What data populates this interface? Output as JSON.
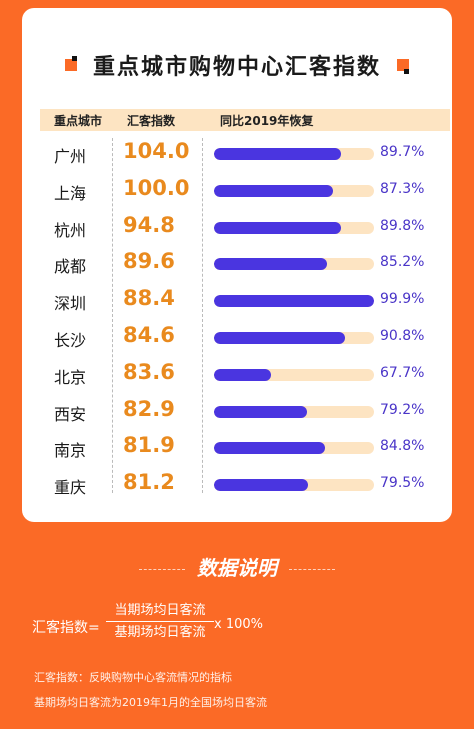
{
  "title": "重点城市购物中心汇客指数",
  "chart_data": {
    "type": "table",
    "columns": [
      "重点城市",
      "汇客指数",
      "同比2019年恢复"
    ],
    "rows": [
      {
        "city": "广州",
        "index": "104.0",
        "recovery": 89.7,
        "recovery_label": "89.7%"
      },
      {
        "city": "上海",
        "index": "100.0",
        "recovery": 87.3,
        "recovery_label": "87.3%"
      },
      {
        "city": "杭州",
        "index": "94.8",
        "recovery": 89.8,
        "recovery_label": "89.8%"
      },
      {
        "city": "成都",
        "index": "89.6",
        "recovery": 85.2,
        "recovery_label": "85.2%"
      },
      {
        "city": "深圳",
        "index": "88.4",
        "recovery": 99.9,
        "recovery_label": "99.9%"
      },
      {
        "city": "长沙",
        "index": "84.6",
        "recovery": 90.8,
        "recovery_label": "90.8%"
      },
      {
        "city": "北京",
        "index": "83.6",
        "recovery": 67.7,
        "recovery_label": "67.7%"
      },
      {
        "city": "西安",
        "index": "82.9",
        "recovery": 79.2,
        "recovery_label": "79.2%"
      },
      {
        "city": "南京",
        "index": "81.9",
        "recovery": 84.8,
        "recovery_label": "84.8%"
      },
      {
        "city": "重庆",
        "index": "81.2",
        "recovery": 79.5,
        "recovery_label": "79.5%"
      }
    ],
    "bar_scale": [
      50,
      100
    ]
  },
  "colors": {
    "accent": "#fb6a26",
    "bar": "#4a35e0",
    "track": "#fde4c2",
    "index": "#e98a1e"
  },
  "explanation": {
    "title": "数据说明",
    "formula_label": "汇客指数=",
    "numerator": "当期场均日客流",
    "denominator": "基期场均日客流",
    "multiplier": "x 100%",
    "note1": "汇客指数：反映购物中心客流情况的指标",
    "note2": "基期场均日客流为2019年1月的全国场均日客流"
  }
}
